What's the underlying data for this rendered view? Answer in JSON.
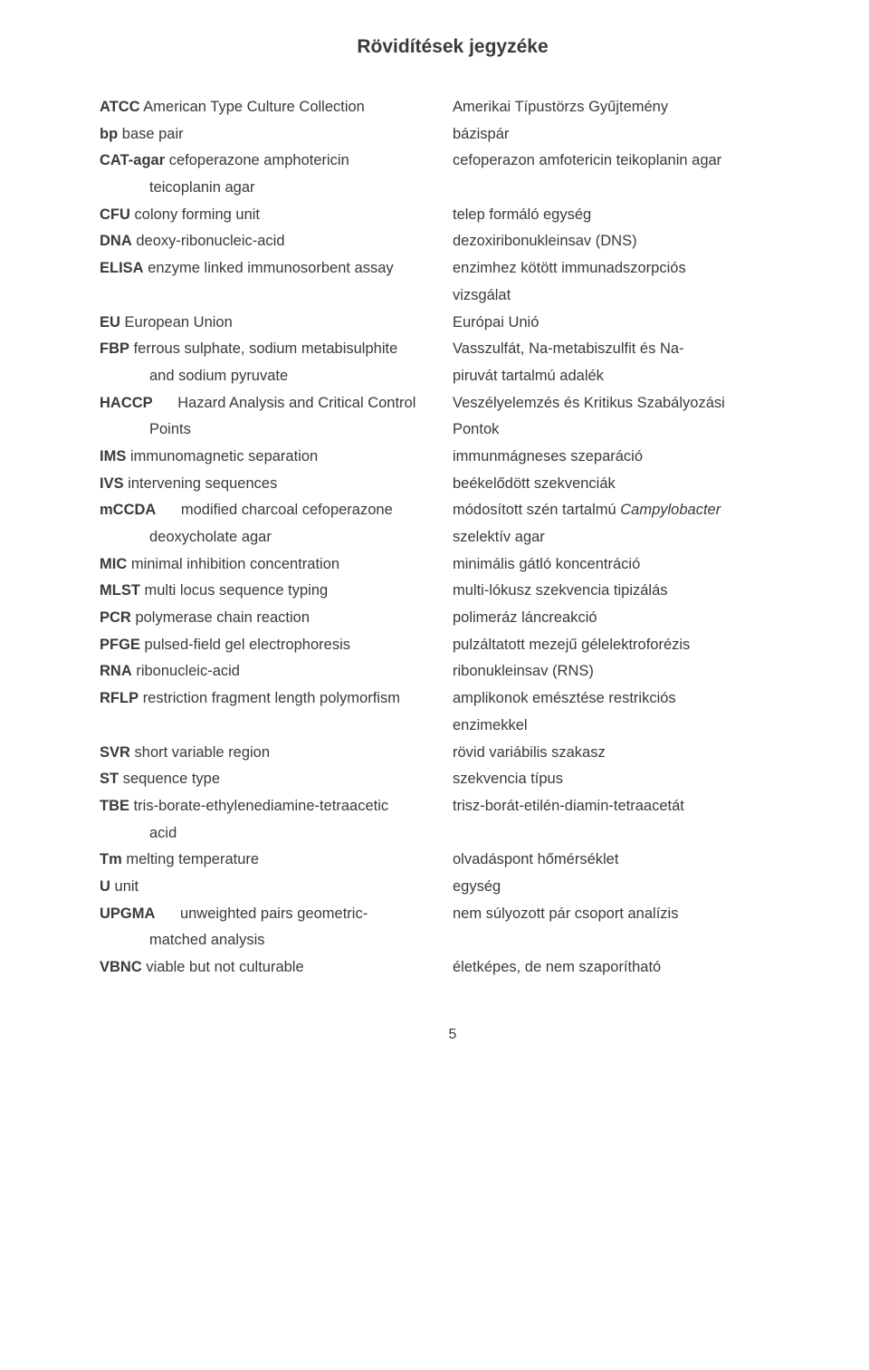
{
  "title": "Rövidítések jegyzéke",
  "pageNumber": "5",
  "fontSize": 16.5,
  "lineHeight": 1.8,
  "textColor": "#3a3a3a",
  "backgroundColor": "#ffffff",
  "left": [
    {
      "abbr": "ATCC",
      "text": "American Type Culture Collection"
    },
    {
      "abbr": "bp",
      "text": "base pair"
    },
    {
      "abbr": "CAT-agar",
      "text": "cefoperazone amphotericin"
    },
    {
      "indent": 1,
      "text": "teicoplanin agar"
    },
    {
      "abbr": "CFU",
      "text": "colony forming unit"
    },
    {
      "abbr": "DNA",
      "text": "deoxy-ribonucleic-acid"
    },
    {
      "abbr": "ELISA",
      "text": "enzyme linked immunosorbent assay"
    },
    {
      "text": ""
    },
    {
      "abbr": "EU",
      "text": "European Union"
    },
    {
      "abbr": "FBP",
      "text": "ferrous sulphate, sodium metabisulphite"
    },
    {
      "indent": 1,
      "text": "and sodium pyruvate"
    },
    {
      "abbr": "HACCP",
      "text": "Hazard Analysis and Critical Control",
      "indentAfter": true
    },
    {
      "indent": 1,
      "text": "Points"
    },
    {
      "abbr": "IMS",
      "text": "immunomagnetic separation"
    },
    {
      "abbr": "IVS",
      "text": "intervening sequences"
    },
    {
      "abbr": "mCCDA",
      "text": "modified charcoal cefoperazone",
      "indentAfter": true
    },
    {
      "indent": 1,
      "text": "deoxycholate agar"
    },
    {
      "abbr": "MIC",
      "text": "minimal inhibition concentration"
    },
    {
      "abbr": "MLST",
      "text": "multi locus sequence typing"
    },
    {
      "abbr": "PCR",
      "text": "polymerase chain reaction"
    },
    {
      "abbr": "PFGE",
      "text": "pulsed-field gel electrophoresis"
    },
    {
      "abbr": "RNA",
      "text": "ribonucleic-acid"
    },
    {
      "abbr": "RFLP",
      "text": "restriction fragment length polymorfism"
    },
    {
      "text": ""
    },
    {
      "abbr": "SVR",
      "text": "short variable region"
    },
    {
      "abbr": "ST",
      "text": "sequence type"
    },
    {
      "abbr": "TBE",
      "text": "tris-borate-ethylenediamine-tetraacetic"
    },
    {
      "indent": 1,
      "text": "acid"
    },
    {
      "abbr": "Tm",
      "text": "melting temperature"
    },
    {
      "abbr": "U",
      "text": "unit"
    },
    {
      "abbr": "UPGMA",
      "text": "unweighted pairs geometric-",
      "indentAfter": true
    },
    {
      "indent": 1,
      "text": "matched analysis"
    },
    {
      "abbr": "VBNC",
      "text": "viable but not culturable"
    }
  ],
  "right": [
    {
      "text": "Amerikai Típustörzs Gyűjtemény"
    },
    {
      "text": "bázispár"
    },
    {
      "text": "cefoperazon amfotericin teikoplanin agar"
    },
    {
      "text": ""
    },
    {
      "text": "telep formáló egység"
    },
    {
      "text": "dezoxiribonukleinsav (DNS)"
    },
    {
      "text": "enzimhez kötött immunadszorpciós"
    },
    {
      "text": "vizsgálat"
    },
    {
      "text": "Európai Unió"
    },
    {
      "text": "Vasszulfát, Na-metabiszulfit és Na-"
    },
    {
      "text": "piruvát tartalmú adalék"
    },
    {
      "text": "Veszélyelemzés és Kritikus Szabályozási"
    },
    {
      "text": "Pontok"
    },
    {
      "text": "immunmágneses szeparáció"
    },
    {
      "text": "beékelődött szekvenciák"
    },
    {
      "text": "módosított szén tartalmú ",
      "italicSuffix": "Campylobacter"
    },
    {
      "text": "szelektív agar"
    },
    {
      "text": "minimális gátló koncentráció"
    },
    {
      "text": "multi-lókusz szekvencia tipizálás"
    },
    {
      "text": "polimeráz láncreakció"
    },
    {
      "text": "pulzáltatott mezejű gélelektroforézis"
    },
    {
      "text": "ribonukleinsav (RNS)"
    },
    {
      "text": "amplikonok emésztése restrikciós"
    },
    {
      "text": "enzimekkel"
    },
    {
      "text": "rövid variábilis szakasz"
    },
    {
      "text": "szekvencia típus"
    },
    {
      "text": "trisz-borát-etilén-diamin-tetraacetát"
    },
    {
      "text": ""
    },
    {
      "text": "olvadáspont hőmérséklet"
    },
    {
      "text": "egység"
    },
    {
      "text": "nem súlyozott pár csoport analízis"
    },
    {
      "text": ""
    },
    {
      "text": "életképes, de nem szaporítható"
    }
  ]
}
